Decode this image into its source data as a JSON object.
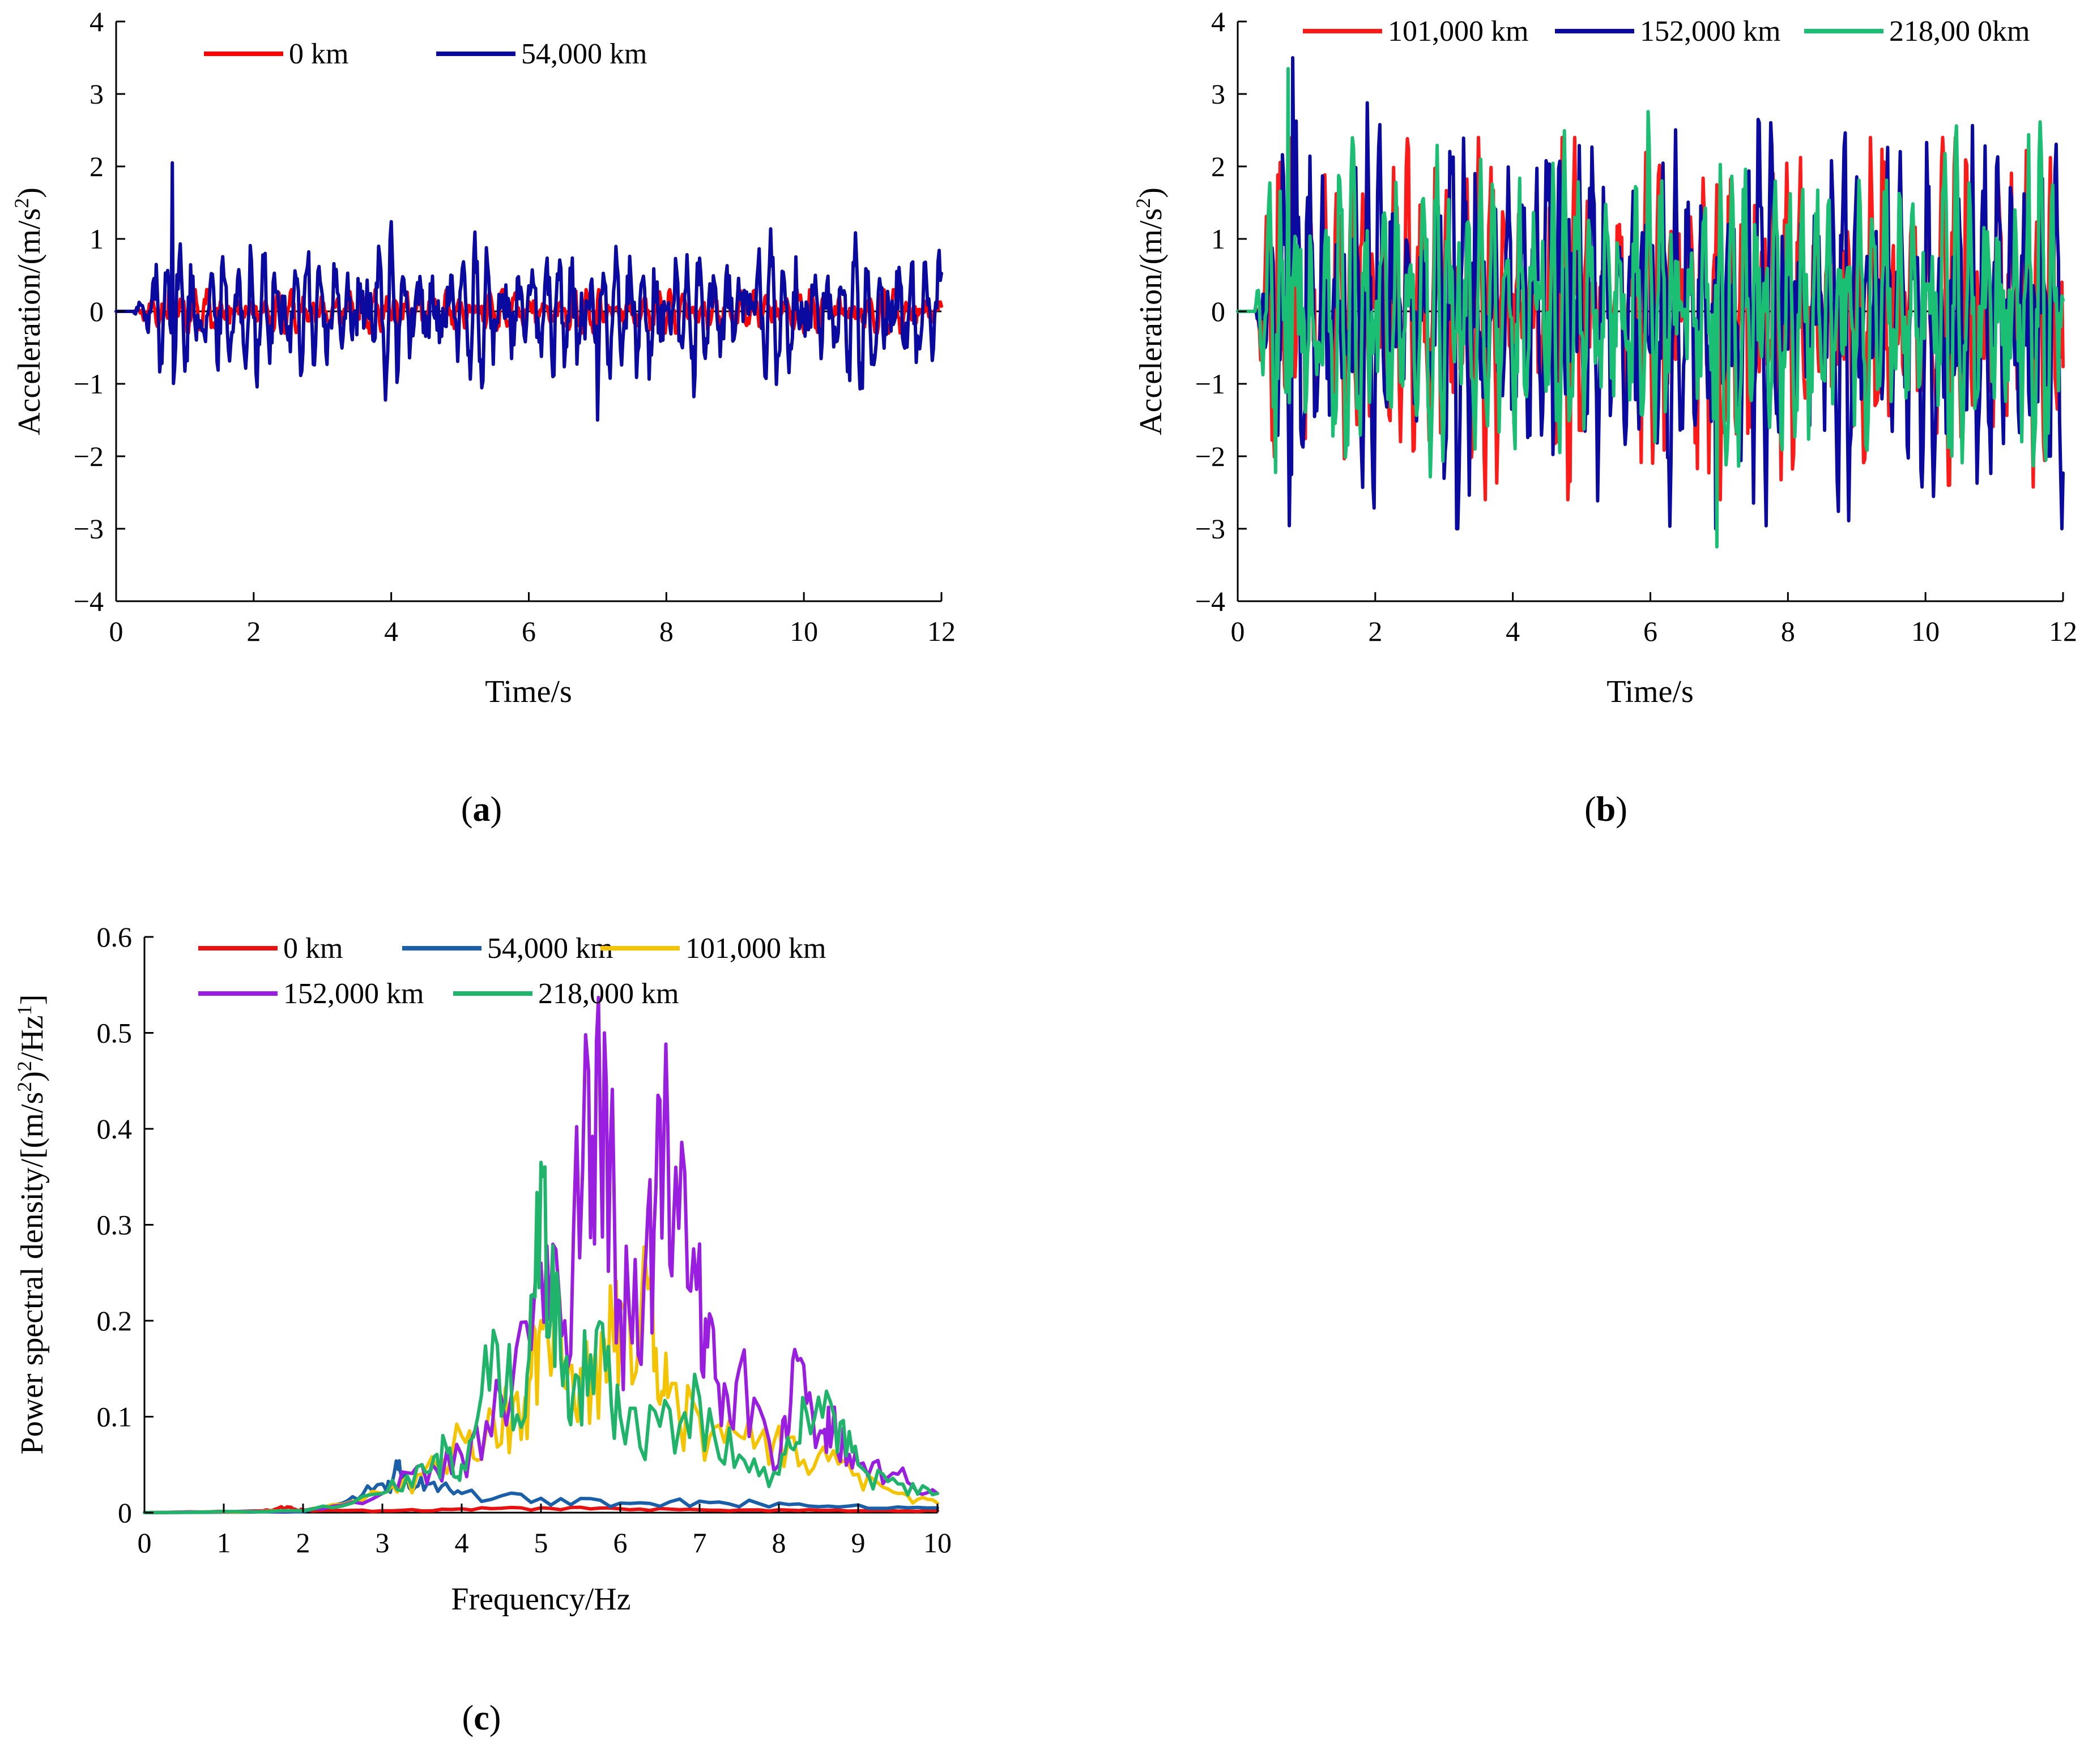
{
  "chart_data": [
    {
      "panel": "(a)",
      "caption_letter": "a",
      "type": "line",
      "xlabel": "Time/s",
      "ylabel": "Acceleration/(m/s²)",
      "ylabel_main": "Acceleration/(m/s",
      "ylabel_sup": "2",
      "ylabel_tail": ")",
      "xlim": [
        0,
        12
      ],
      "ylim": [
        -4,
        4
      ],
      "xticks": [
        0,
        2,
        4,
        6,
        8,
        10,
        12
      ],
      "yticks": [
        -4,
        -3,
        -2,
        -1,
        0,
        1,
        2,
        3,
        4
      ],
      "ytick_labels": [
        "−4",
        "−3",
        "−2",
        "−1",
        "0",
        "1",
        "2",
        "3",
        "4"
      ],
      "grid": false,
      "legend_position": "top-left",
      "series": [
        {
          "name": "0 km",
          "color": "#ff0000",
          "amplitude_rms": 0.15,
          "peak": [
            0.3,
            -0.3
          ]
        },
        {
          "name": "54,000 km",
          "color": "#0a0aa0",
          "amplitude_rms": 0.45,
          "peak": [
            2.05,
            -1.5
          ]
        }
      ]
    },
    {
      "panel": "(b)",
      "caption_letter": "b",
      "type": "line",
      "xlabel": "Time/s",
      "ylabel": "Acceleration/(m/s²)",
      "ylabel_main": "Acceleration/(m/s",
      "ylabel_sup": "2",
      "ylabel_tail": ")",
      "xlim": [
        0,
        12
      ],
      "ylim": [
        -4,
        4
      ],
      "xticks": [
        0,
        2,
        4,
        6,
        8,
        10,
        12
      ],
      "yticks": [
        -4,
        -3,
        -2,
        -1,
        0,
        1,
        2,
        3,
        4
      ],
      "ytick_labels": [
        "−4",
        "−3",
        "−2",
        "−1",
        "0",
        "1",
        "2",
        "3",
        "4"
      ],
      "grid": false,
      "legend_position": "top",
      "series": [
        {
          "name": "101,000 km",
          "color": "#ff1a1a",
          "amplitude_rms": 1.1,
          "peak": [
            2.4,
            -2.6
          ]
        },
        {
          "name": "152,000 km",
          "color": "#0a0aa0",
          "amplitude_rms": 1.2,
          "peak": [
            3.5,
            -3.0
          ]
        },
        {
          "name": "218,00 0km",
          "color": "#1abf73",
          "amplitude_rms": 1.0,
          "peak": [
            3.35,
            -3.25
          ]
        }
      ]
    },
    {
      "panel": "(c)",
      "caption_letter": "c",
      "type": "line",
      "xlabel": "Frequency/Hz",
      "ylabel": "Power spectral density/[(m/s²)²/Hz¹]",
      "ylabel_parts": [
        "Power spectral density/[(m/s",
        "2",
        ")",
        "2",
        "/Hz",
        "1",
        "]"
      ],
      "xlim": [
        0,
        10
      ],
      "ylim": [
        0,
        0.6
      ],
      "xticks": [
        0,
        1,
        2,
        3,
        4,
        5,
        6,
        7,
        8,
        9,
        10
      ],
      "yticks": [
        0,
        0.1,
        0.2,
        0.3,
        0.4,
        0.5,
        0.6
      ],
      "ytick_labels": [
        "0",
        "0.1",
        "0.2",
        "0.3",
        "0.4",
        "0.5",
        "0.6"
      ],
      "grid": false,
      "legend_position": "top-left",
      "series": [
        {
          "name": "0 km",
          "color": "#e81010",
          "x": [
            0,
            1.5,
            1.8,
            2.0,
            3.0,
            4.0,
            5.0,
            6.0,
            7.0,
            8.0,
            9.0,
            10.0
          ],
          "y": [
            0,
            0.002,
            0.006,
            0.003,
            0.002,
            0.004,
            0.005,
            0.004,
            0.003,
            0.003,
            0.002,
            0.002
          ]
        },
        {
          "name": "54,000 km",
          "color": "#1b5fa8",
          "x": [
            0,
            2.0,
            2.5,
            3.0,
            3.2,
            3.3,
            3.6,
            4.0,
            5.0,
            6.0,
            7.0,
            8.0,
            9.0,
            10.0
          ],
          "y": [
            0,
            0.001,
            0.01,
            0.03,
            0.045,
            0.04,
            0.03,
            0.02,
            0.015,
            0.01,
            0.012,
            0.01,
            0.008,
            0.005
          ]
        },
        {
          "name": "101,000 km",
          "color": "#f5c400",
          "x": [
            0,
            2.0,
            3.0,
            3.5,
            4.0,
            4.4,
            4.8,
            5.0,
            5.2,
            5.5,
            5.8,
            6.0,
            6.4,
            6.6,
            7.0,
            7.5,
            8.0,
            8.5,
            9.0,
            9.5,
            10.0
          ],
          "y": [
            0,
            0.002,
            0.02,
            0.04,
            0.08,
            0.1,
            0.12,
            0.2,
            0.25,
            0.15,
            0.18,
            0.22,
            0.25,
            0.12,
            0.1,
            0.08,
            0.09,
            0.06,
            0.04,
            0.02,
            0.01
          ]
        },
        {
          "name": "152,000 km",
          "color": "#9a1ee0",
          "x": [
            0,
            2.0,
            3.0,
            3.5,
            4.0,
            4.5,
            5.0,
            5.3,
            5.6,
            5.8,
            6.0,
            6.3,
            6.5,
            6.7,
            7.0,
            7.2,
            7.5,
            8.0,
            8.2,
            8.5,
            8.7,
            9.0,
            9.5,
            10.0
          ],
          "y": [
            0,
            0.002,
            0.02,
            0.05,
            0.06,
            0.12,
            0.26,
            0.2,
            0.46,
            0.5,
            0.22,
            0.24,
            0.43,
            0.36,
            0.28,
            0.14,
            0.15,
            0.05,
            0.17,
            0.08,
            0.11,
            0.05,
            0.04,
            0.02
          ]
        },
        {
          "name": "218,000 km",
          "color": "#20b46a",
          "x": [
            0,
            2.0,
            3.0,
            3.5,
            3.8,
            4.0,
            4.4,
            4.8,
            5.0,
            5.2,
            5.4,
            5.7,
            6.0,
            6.5,
            7.0,
            7.5,
            8.0,
            8.3,
            8.7,
            9.0,
            9.5,
            10.0
          ],
          "y": [
            0,
            0.002,
            0.02,
            0.05,
            0.07,
            0.05,
            0.19,
            0.1,
            0.365,
            0.25,
            0.12,
            0.19,
            0.1,
            0.09,
            0.12,
            0.06,
            0.04,
            0.12,
            0.1,
            0.05,
            0.03,
            0.02
          ]
        }
      ]
    }
  ]
}
